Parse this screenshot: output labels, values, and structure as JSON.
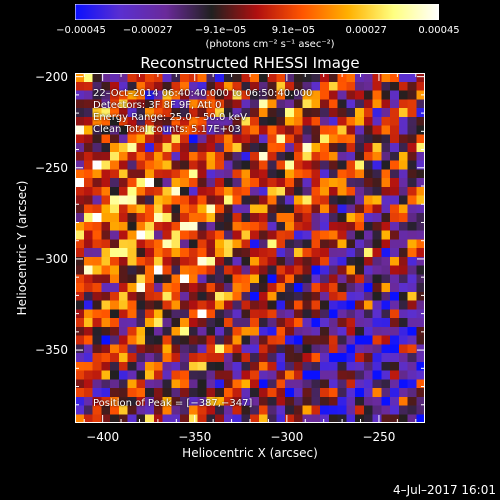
{
  "colorbar": {
    "labels": [
      "−0.00045",
      "−0.00027",
      "−9.1e−05",
      "9.1e−05",
      "0.00027",
      "0.00045"
    ],
    "unit": "(photons cm⁻² s⁻¹ asec⁻²)",
    "stops": [
      "#0a10ff",
      "#5a2fd0",
      "#6a2a9a",
      "#202020",
      "#b01010",
      "#ff5500",
      "#ffb000",
      "#ffff80",
      "#ffffff"
    ]
  },
  "annotations": {
    "time": "22–Oct–2014 06:40:40.000 to 06:50:40.000",
    "detectors": "Detectors: 3F 8F 9F, Att 0",
    "energy": "Energy Range: 25.0 – 50.0 keV",
    "method": "Clean     Total counts: 5.17E+03",
    "peak": "Position of Peak = [−387,−347]"
  },
  "footer": {
    "timestamp": "4–Jul–2017 16:01"
  },
  "chart_data": {
    "type": "heatmap",
    "title": "Reconstructed RHESSI Image",
    "xlabel": "Heliocentric X (arcsec)",
    "ylabel": "Heliocentric Y (arcsec)",
    "xlim": [
      -415,
      -225
    ],
    "ylim": [
      -390,
      -198
    ],
    "xticks": [
      -400,
      -350,
      -300,
      -250
    ],
    "yticks": [
      -200,
      -250,
      -300,
      -350
    ],
    "xtick_labels": [
      "−400",
      "−350",
      "−300",
      "−250"
    ],
    "ytick_labels": [
      "−200",
      "−250",
      "−300",
      "−350"
    ],
    "value_range": [
      -0.00045,
      0.00045
    ],
    "grid_size": 40,
    "peak_position": [
      -387,
      -347
    ]
  }
}
